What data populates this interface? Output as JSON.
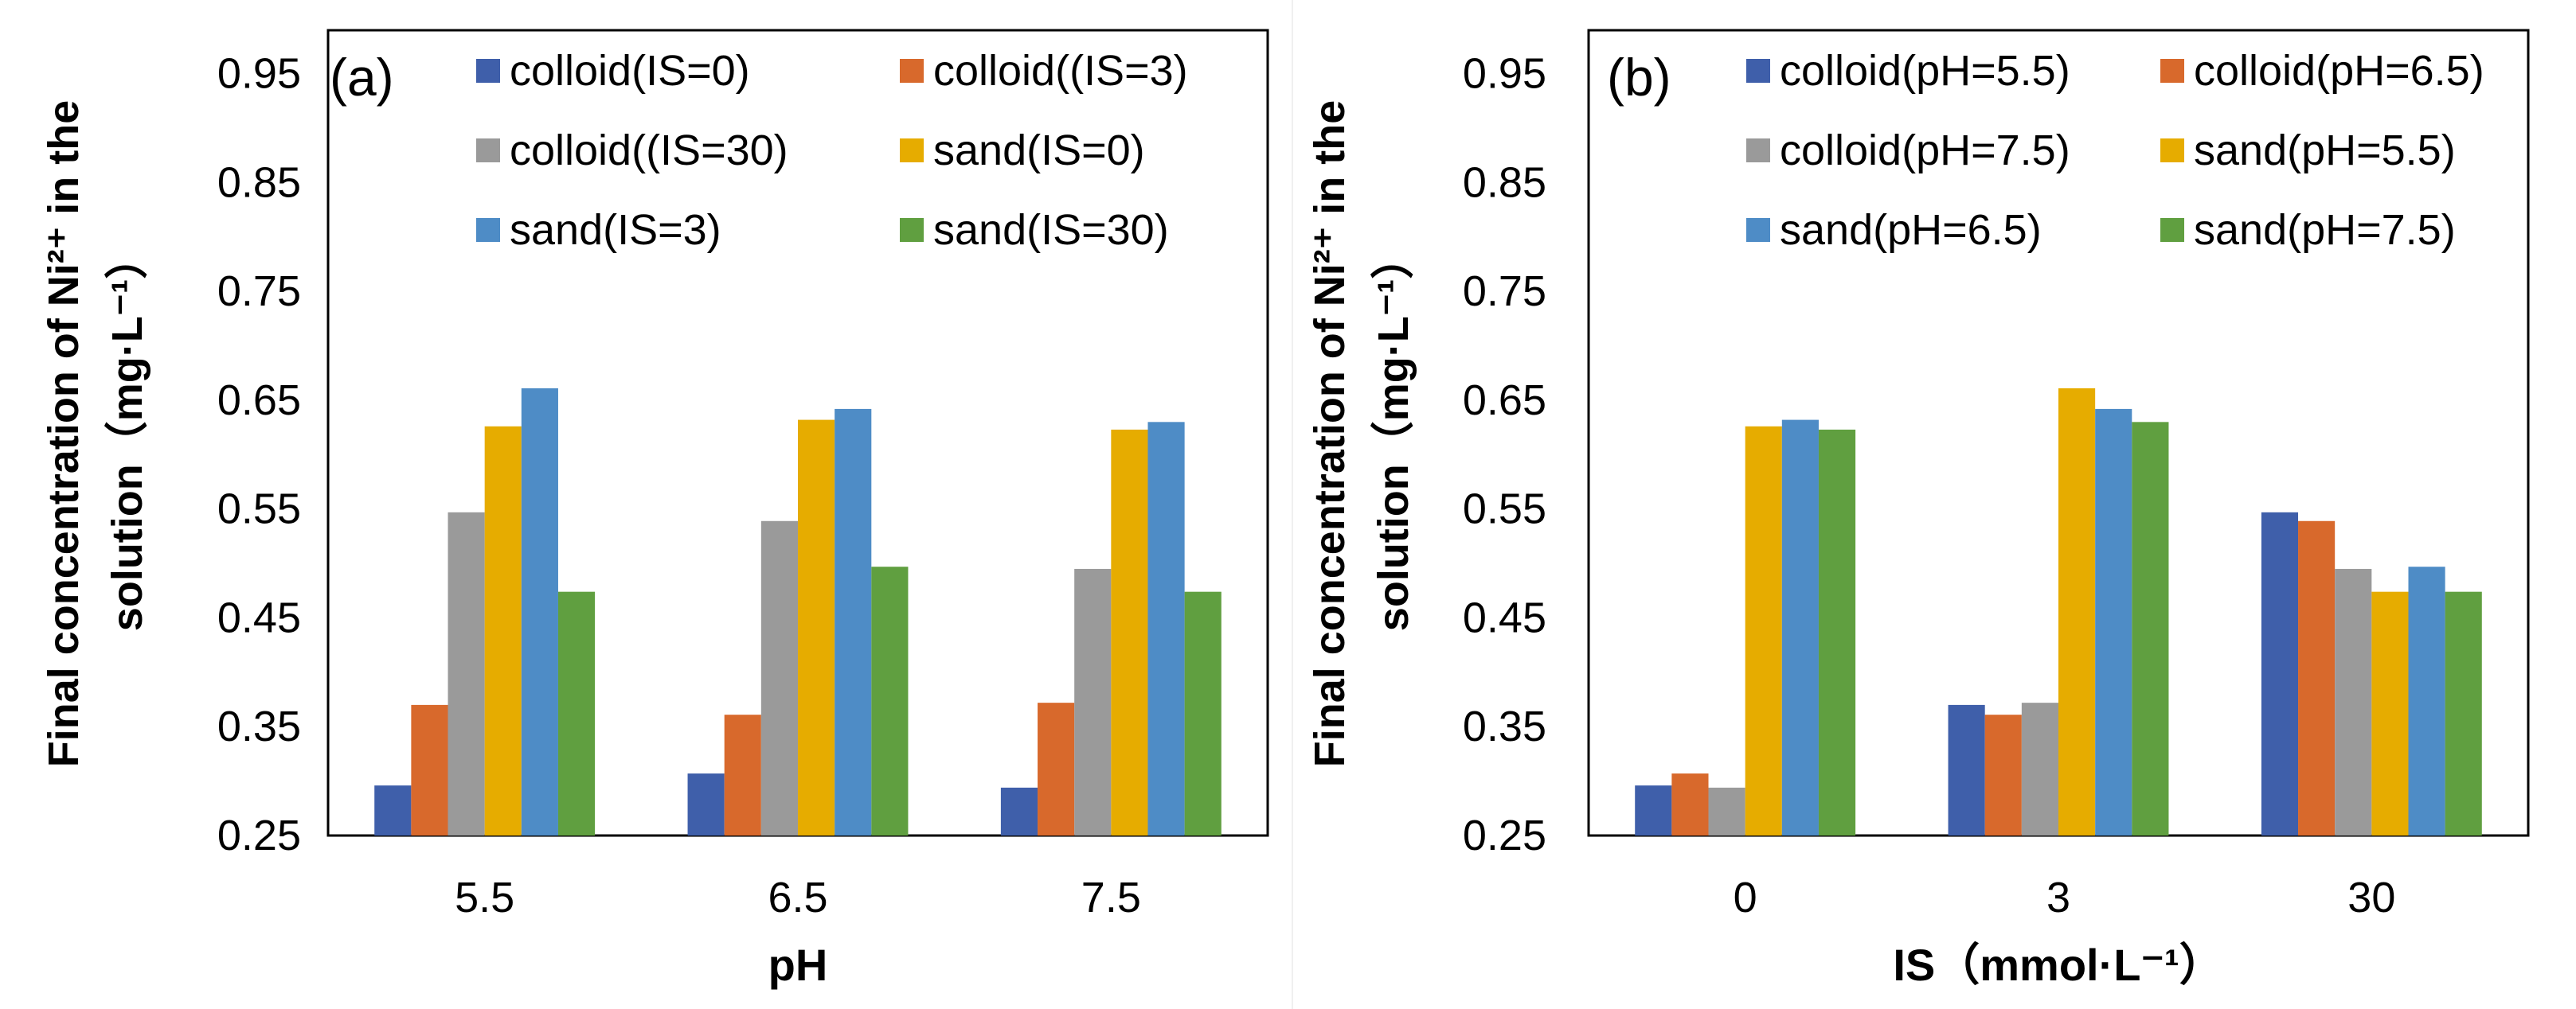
{
  "colors": {
    "s1": "#3F5FAA",
    "s2": "#D8692C",
    "s3": "#9A9A9A",
    "s4": "#E6AC00",
    "s5": "#4E8CC6",
    "s6": "#609F40"
  },
  "chart_data": [
    {
      "type": "bar",
      "panel_label": "(a)",
      "title": "",
      "xlabel": "pH",
      "ylabel_line1": "Final concentration of Ni²⁺ in the",
      "ylabel_line2": "solution（mg·L⁻¹）",
      "ylim": [
        0.25,
        0.99
      ],
      "yticks": [
        0.25,
        0.35,
        0.45,
        0.55,
        0.65,
        0.75,
        0.85,
        0.95
      ],
      "ytick_labels": [
        "0.25",
        "0.35",
        "0.45",
        "0.55",
        "0.65",
        "0.75",
        "0.85",
        "0.95"
      ],
      "categories": [
        "5.5",
        "6.5",
        "7.5"
      ],
      "legend_position": "top",
      "series": [
        {
          "name": "colloid(IS=0)",
          "color_key": "s1",
          "values": [
            0.296,
            0.307,
            0.294
          ]
        },
        {
          "name": "colloid((IS=3)",
          "color_key": "s2",
          "values": [
            0.37,
            0.361,
            0.372
          ]
        },
        {
          "name": "colloid((IS=30)",
          "color_key": "s3",
          "values": [
            0.547,
            0.539,
            0.495
          ]
        },
        {
          "name": "sand(IS=0)",
          "color_key": "s4",
          "values": [
            0.626,
            0.632,
            0.623
          ]
        },
        {
          "name": "sand(IS=3)",
          "color_key": "s5",
          "values": [
            0.661,
            0.642,
            0.63
          ]
        },
        {
          "name": "sand(IS=30)",
          "color_key": "s6",
          "values": [
            0.474,
            0.497,
            0.474
          ]
        }
      ]
    },
    {
      "type": "bar",
      "panel_label": "(b)",
      "title": "",
      "xlabel": "IS（mmol·L⁻¹）",
      "ylabel_line1": "Final concentration of Ni²⁺ in the",
      "ylabel_line2": "solution（mg·L⁻¹）",
      "ylim": [
        0.25,
        0.99
      ],
      "yticks": [
        0.25,
        0.35,
        0.45,
        0.55,
        0.65,
        0.75,
        0.85,
        0.95
      ],
      "ytick_labels": [
        "0.25",
        "0.35",
        "0.45",
        "0.55",
        "0.65",
        "0.75",
        "0.85",
        "0.95"
      ],
      "categories": [
        "0",
        "3",
        "30"
      ],
      "legend_position": "top",
      "series": [
        {
          "name": "colloid(pH=5.5)",
          "color_key": "s1",
          "values": [
            0.296,
            0.37,
            0.547
          ]
        },
        {
          "name": "colloid(pH=6.5)",
          "color_key": "s2",
          "values": [
            0.307,
            0.361,
            0.539
          ]
        },
        {
          "name": "colloid(pH=7.5)",
          "color_key": "s3",
          "values": [
            0.294,
            0.372,
            0.495
          ]
        },
        {
          "name": "sand(pH=5.5)",
          "color_key": "s4",
          "values": [
            0.626,
            0.661,
            0.474
          ]
        },
        {
          "name": "sand(pH=6.5)",
          "color_key": "s5",
          "values": [
            0.632,
            0.642,
            0.497
          ]
        },
        {
          "name": "sand(pH=7.5)",
          "color_key": "s6",
          "values": [
            0.623,
            0.63,
            0.474
          ]
        }
      ]
    }
  ]
}
